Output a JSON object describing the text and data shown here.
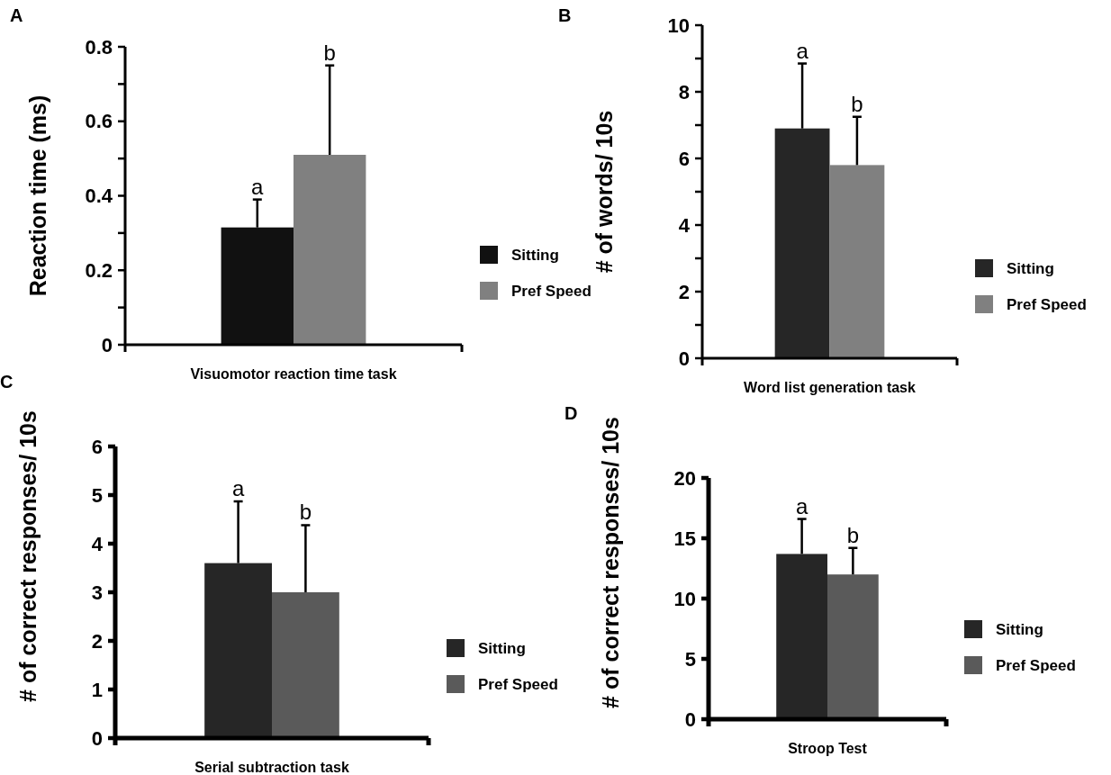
{
  "chart_data": [
    {
      "type": "bar",
      "title": "A",
      "xlabel": "Visuomotor reaction time task",
      "ylabel": "Reaction time (ms)",
      "categories": [
        null
      ],
      "series": [
        {
          "name": "Sitting",
          "color": "#111111",
          "values": [
            0.315
          ],
          "errors": [
            [
              0.315,
              0.39
            ]
          ]
        },
        {
          "name": "Pref Speed",
          "color": "#808080",
          "values": [
            0.51
          ],
          "errors": [
            [
              0.51,
              0.75
            ]
          ]
        }
      ],
      "annotations": [
        {
          "text": "a",
          "y": 0.39
        },
        {
          "text": "b",
          "y": 0.75
        }
      ],
      "ylim": [
        0,
        0.8
      ],
      "yticks": [
        0,
        {
          "value": 0.1,
          "label": null
        },
        {
          "value": 0.2,
          "label": "0.2"
        },
        {
          "value": 0.3,
          "label": null
        },
        {
          "value": 0.4,
          "label": "0.4"
        },
        {
          "value": 0.5,
          "label": null
        },
        {
          "value": 0.6,
          "label": "0.6"
        },
        {
          "value": 0.7,
          "label": null
        },
        {
          "value": 0.8,
          "label": "0.8"
        }
      ],
      "legend": "right",
      "grid": false
    },
    {
      "type": "bar",
      "title": "B",
      "xlabel": "Word list generation task",
      "ylabel": "# of words/ 10s",
      "categories": [
        null
      ],
      "series": [
        {
          "name": "Sitting",
          "color": "#262626",
          "values": [
            6.9
          ],
          "errors": [
            [
              6.9,
              8.85
            ]
          ]
        },
        {
          "name": "Pref Speed",
          "color": "#808080",
          "values": [
            5.8
          ],
          "errors": [
            [
              5.8,
              7.25
            ]
          ]
        }
      ],
      "annotations": [
        {
          "text": "a",
          "y": 8.85
        },
        {
          "text": "b",
          "y": 7.25
        }
      ],
      "ylim": [
        0,
        10
      ],
      "yticks": [
        0,
        {
          "value": 1,
          "label": null
        },
        2,
        {
          "value": 3,
          "label": null
        },
        4,
        {
          "value": 5,
          "label": null
        },
        6,
        {
          "value": 7,
          "label": null
        },
        8,
        {
          "value": 9,
          "label": null
        },
        10
      ],
      "legend": "right",
      "grid": false
    },
    {
      "type": "bar",
      "title": "C",
      "xlabel": "Serial subtraction task",
      "ylabel": "# of correct responses/ 10s",
      "categories": [
        null
      ],
      "series": [
        {
          "name": "Sitting",
          "color": "#262626",
          "values": [
            3.6
          ],
          "errors": [
            [
              3.6,
              4.87
            ]
          ]
        },
        {
          "name": "Pref Speed",
          "color": "#5a5a5a",
          "values": [
            3.0
          ],
          "errors": [
            [
              3.0,
              4.38
            ]
          ]
        }
      ],
      "annotations": [
        {
          "text": "a",
          "y": 4.87
        },
        {
          "text": "b",
          "y": 4.38
        }
      ],
      "ylim": [
        0,
        6
      ],
      "yticks": [
        0,
        1,
        2,
        3,
        4,
        5,
        6
      ],
      "legend": "right",
      "grid": false
    },
    {
      "type": "bar",
      "title": "D",
      "xlabel": "Stroop Test",
      "ylabel": "# of correct  responses/ 10s",
      "categories": [
        null
      ],
      "series": [
        {
          "name": "Sitting",
          "color": "#262626",
          "values": [
            13.7
          ],
          "errors": [
            [
              13.7,
              16.6
            ]
          ]
        },
        {
          "name": "Pref Speed",
          "color": "#5a5a5a",
          "values": [
            12.0
          ],
          "errors": [
            [
              12.0,
              14.2
            ]
          ]
        }
      ],
      "annotations": [
        {
          "text": "a",
          "y": 16.6
        },
        {
          "text": "b",
          "y": 14.2
        }
      ],
      "ylim": [
        0,
        20
      ],
      "yticks": [
        0,
        5,
        10,
        15,
        20
      ],
      "legend": "right",
      "grid": false
    }
  ]
}
